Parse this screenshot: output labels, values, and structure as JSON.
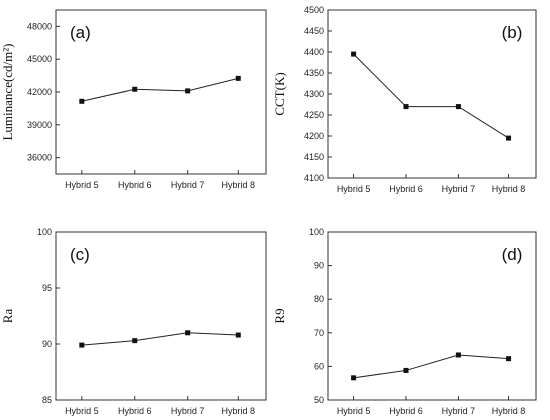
{
  "chart_data": [
    {
      "type": "line",
      "panel_label": "(a)",
      "ylabel": "Luminance(cd/m²)",
      "categories": [
        "Hybrid 5",
        "Hybrid 6",
        "Hybrid 7",
        "Hybrid 8"
      ],
      "values": [
        41150,
        42250,
        42100,
        43250
      ],
      "ylim": [
        34500,
        49500
      ],
      "yticks": [
        36000,
        39000,
        42000,
        45000,
        48000
      ],
      "ytick_labels": [
        "36000",
        "39000",
        "42000",
        "45000",
        "48000"
      ],
      "grid": false,
      "legend": "none"
    },
    {
      "type": "line",
      "panel_label": "(b)",
      "ylabel": "CCT(K)",
      "categories": [
        "Hybrid 5",
        "Hybrid 6",
        "Hybrid 7",
        "Hybrid 8"
      ],
      "values": [
        4395,
        4270,
        4270,
        4195
      ],
      "ylim": [
        4100,
        4500
      ],
      "yticks": [
        4100,
        4150,
        4200,
        4250,
        4300,
        4350,
        4400,
        4450,
        4500
      ],
      "ytick_labels": [
        "4100",
        "4150",
        "4200",
        "4250",
        "4300",
        "4350",
        "4400",
        "4450",
        "4500"
      ],
      "grid": false,
      "legend": "none"
    },
    {
      "type": "line",
      "panel_label": "(c)",
      "ylabel": "Ra",
      "categories": [
        "Hybrid 5",
        "Hybrid 6",
        "Hybrid 7",
        "Hybrid 8"
      ],
      "values": [
        89.9,
        90.3,
        91.0,
        90.8
      ],
      "ylim": [
        85,
        100
      ],
      "yticks": [
        85,
        90,
        95,
        100
      ],
      "ytick_labels": [
        "85",
        "90",
        "95",
        "100"
      ],
      "grid": false,
      "legend": "none"
    },
    {
      "type": "line",
      "panel_label": "(d)",
      "ylabel": "R9",
      "categories": [
        "Hybrid 5",
        "Hybrid 6",
        "Hybrid 7",
        "Hybrid 8"
      ],
      "values": [
        56.6,
        58.8,
        63.4,
        62.3
      ],
      "ylim": [
        50,
        100
      ],
      "yticks": [
        50,
        60,
        70,
        80,
        90,
        100
      ],
      "ytick_labels": [
        "50",
        "60",
        "70",
        "80",
        "90",
        "100"
      ],
      "grid": false,
      "legend": "none"
    }
  ]
}
